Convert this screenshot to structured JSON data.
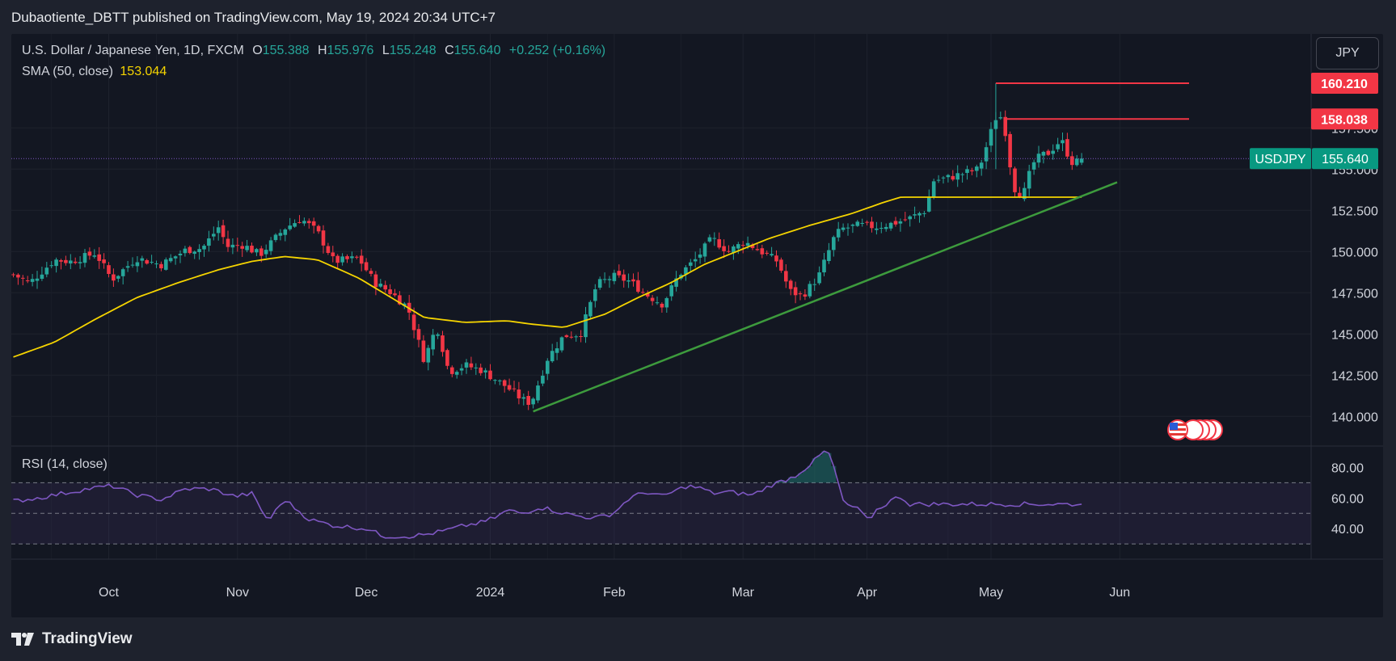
{
  "header": {
    "publish_text": "Dubaotiente_DBTT published on TradingView.com, May 19, 2024 20:34 UTC+7"
  },
  "legend": {
    "symbol": "U.S. Dollar / Japanese Yen, 1D, FXCM",
    "o_label": "O",
    "o_value": "155.388",
    "h_label": "H",
    "h_value": "155.976",
    "l_label": "L",
    "l_value": "155.248",
    "c_label": "C",
    "c_value": "155.640",
    "change": "+0.252 (+0.16%)",
    "sma_label": "SMA (50, close)",
    "sma_value": "153.044",
    "rsi_label": "RSI (14, close)"
  },
  "currency_button": "JPY",
  "footer": {
    "brand": "TradingView"
  },
  "colors": {
    "up": "#26a69a",
    "down": "#f23645",
    "sma": "#f5d400",
    "trend": "#3d9b3d",
    "rsi": "#7e57c2",
    "bg": "#131722"
  },
  "chart_data": [
    {
      "type": "candlestick",
      "symbol": "USDJPY",
      "timeframe": "1D",
      "x_axis": {
        "ticks": [
          "Oct",
          "Nov",
          "Dec",
          "2024",
          "Feb",
          "Mar",
          "Apr",
          "May",
          "Jun"
        ]
      },
      "y_axis": {
        "ticks": [
          "140.000",
          "142.500",
          "145.000",
          "147.500",
          "150.000",
          "152.500",
          "155.000",
          "157.500"
        ],
        "range": [
          138.2,
          163.2
        ],
        "side": "right"
      },
      "series": [
        {
          "name": "SMA (50, close)",
          "last": 153.044,
          "anchors": [
            [
              0,
              143.6
            ],
            [
              10,
              144.5
            ],
            [
              20,
              145.9
            ],
            [
              30,
              147.2
            ],
            [
              40,
              148.1
            ],
            [
              50,
              148.9
            ],
            [
              58,
              149.4
            ],
            [
              66,
              149.7
            ],
            [
              74,
              149.5
            ],
            [
              84,
              148.4
            ],
            [
              92,
              147.2
            ],
            [
              100,
              146.0
            ],
            [
              110,
              145.7
            ],
            [
              120,
              145.8
            ],
            [
              126,
              145.6
            ],
            [
              134,
              145.4
            ],
            [
              144,
              146.2
            ],
            [
              152,
              147.2
            ],
            [
              160,
              148.1
            ],
            [
              168,
              149.2
            ],
            [
              176,
              150.0
            ],
            [
              184,
              150.8
            ],
            [
              194,
              151.6
            ],
            [
              204,
              152.3
            ],
            [
              212,
              153.0
            ],
            [
              216,
              153.3
            ]
          ]
        },
        {
          "name": "trendline",
          "from": [
            "2023-12-28",
            140.3
          ],
          "to": [
            "2024-05-29",
            154.2
          ]
        }
      ],
      "candles_summary": {
        "start_close": 148.7,
        "peak_high": 160.21,
        "trough_low": 140.25,
        "last_close": 155.64
      },
      "price_labels": [
        {
          "text": "160.210",
          "value": 160.21,
          "color": "#f23645"
        },
        {
          "text": "158.038",
          "value": 158.038,
          "color": "#f23645"
        },
        {
          "text": "155.640",
          "value": 155.64,
          "label": "USDJPY",
          "color": "#089981"
        }
      ]
    },
    {
      "type": "line",
      "name": "RSI (14, close)",
      "y_axis": {
        "ticks": [
          "40.00",
          "60.00",
          "80.00"
        ],
        "range": [
          20,
          94
        ],
        "bands": [
          30,
          50,
          70
        ]
      },
      "anchors": [
        [
          0,
          58
        ],
        [
          6,
          60
        ],
        [
          12,
          63
        ],
        [
          18,
          66
        ],
        [
          24,
          68
        ],
        [
          30,
          62
        ],
        [
          36,
          59
        ],
        [
          42,
          66
        ],
        [
          48,
          66
        ],
        [
          54,
          61
        ],
        [
          58,
          63
        ],
        [
          62,
          45
        ],
        [
          66,
          59
        ],
        [
          72,
          46
        ],
        [
          78,
          42
        ],
        [
          86,
          40
        ],
        [
          90,
          35
        ],
        [
          96,
          35
        ],
        [
          100,
          36
        ],
        [
          104,
          38
        ],
        [
          110,
          42
        ],
        [
          114,
          44
        ],
        [
          118,
          48
        ],
        [
          120,
          52
        ],
        [
          124,
          50
        ],
        [
          128,
          54
        ],
        [
          130,
          53
        ],
        [
          134,
          50
        ],
        [
          138,
          48
        ],
        [
          142,
          47
        ],
        [
          146,
          50
        ],
        [
          150,
          60
        ],
        [
          154,
          64
        ],
        [
          158,
          61
        ],
        [
          164,
          68
        ],
        [
          168,
          66
        ],
        [
          170,
          63
        ],
        [
          174,
          64
        ],
        [
          180,
          62
        ],
        [
          184,
          68
        ],
        [
          188,
          72
        ],
        [
          190,
          74
        ],
        [
          194,
          82
        ],
        [
          196,
          87
        ],
        [
          198,
          92
        ],
        [
          200,
          78
        ],
        [
          202,
          57
        ],
        [
          206,
          52
        ],
        [
          208,
          45
        ],
        [
          210,
          52
        ],
        [
          214,
          59
        ],
        [
          216,
          61
        ],
        [
          218,
          56
        ]
      ],
      "last": 56
    }
  ]
}
